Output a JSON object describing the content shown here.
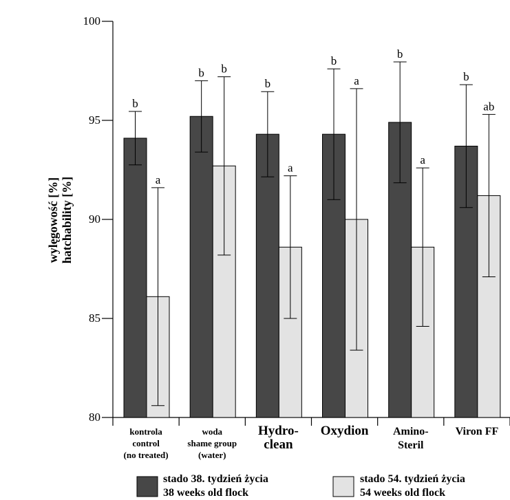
{
  "chart_data": {
    "type": "bar",
    "title": "",
    "ylabel_lines": [
      "wylęgowość [%]",
      "hatchability [%]"
    ],
    "xlabel": "",
    "ylim": [
      80,
      100
    ],
    "yticks": [
      80,
      85,
      90,
      95,
      100
    ],
    "grid": false,
    "categories": [
      {
        "lines": [
          "kontrola",
          "control",
          "(no treated)"
        ],
        "size": "small"
      },
      {
        "lines": [
          "woda",
          "shame group",
          "(water)"
        ],
        "size": "small"
      },
      {
        "lines": [
          "Hydro-",
          "clean"
        ],
        "size": "large"
      },
      {
        "lines": [
          "Oxydion"
        ],
        "size": "large"
      },
      {
        "lines": [
          "Amino-",
          "Steril"
        ],
        "size": "medium"
      },
      {
        "lines": [
          "Viron FF"
        ],
        "size": "medium"
      }
    ],
    "series": [
      {
        "name_lines": [
          "stado 38. tydzień życia",
          "38 weeks old flock"
        ],
        "color": "#474747",
        "values": [
          94.1,
          95.2,
          94.3,
          94.3,
          94.9,
          93.7
        ],
        "errors": [
          1.35,
          1.8,
          2.15,
          3.3,
          3.05,
          3.1
        ],
        "labels": [
          "b",
          "b",
          "b",
          "b",
          "b",
          "b"
        ]
      },
      {
        "name_lines": [
          "stado 54. tydzień życia",
          "54 weeks old flock"
        ],
        "color": "#e3e3e3",
        "values": [
          86.1,
          92.7,
          88.6,
          90.0,
          88.6,
          91.2
        ],
        "errors": [
          5.5,
          4.5,
          3.6,
          6.6,
          4.0,
          4.1
        ],
        "labels": [
          "a",
          "b",
          "a",
          "a",
          "a",
          "ab"
        ]
      }
    ],
    "legend": "bottom"
  }
}
